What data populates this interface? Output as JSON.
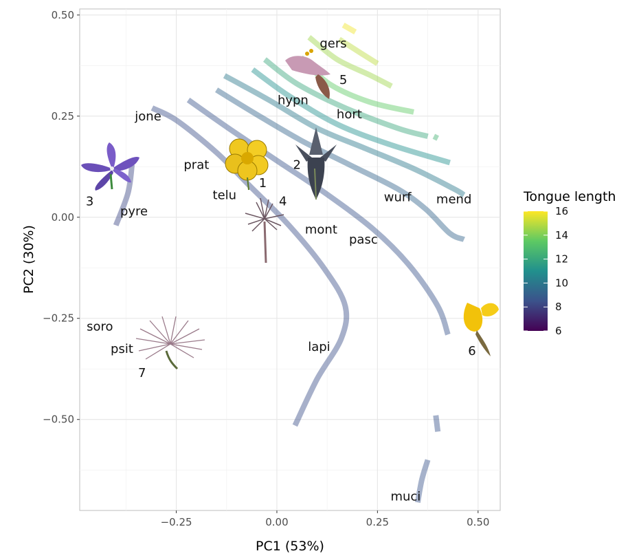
{
  "chart_data": {
    "type": "scatter",
    "xlabel": "PC1 (53%)",
    "ylabel": "PC2 (30%)",
    "xlim": [
      -0.49,
      0.555
    ],
    "ylim": [
      -0.725,
      0.515
    ],
    "x_ticks": [
      -0.25,
      0.0,
      0.25,
      0.5
    ],
    "x_tick_labels": [
      "−0.25",
      "0.00",
      "0.25",
      "0.50"
    ],
    "y_ticks": [
      0.5,
      0.25,
      0.0,
      -0.25,
      -0.5
    ],
    "y_tick_labels": [
      "0.50",
      "0.25",
      "0.00",
      "−0.25",
      "−0.50"
    ],
    "grid": true,
    "legend": {
      "title": "Tongue length",
      "min": 6,
      "max": 16,
      "ticks": [
        16,
        14,
        12,
        10,
        8,
        6
      ],
      "placement": "right",
      "palette": "viridis"
    },
    "contours": [
      {
        "tongue_length": 8.2,
        "points": [
          [
            -0.4,
            -0.02
          ],
          [
            -0.37,
            0.06
          ],
          [
            -0.36,
            0.13
          ]
        ]
      },
      {
        "tongue_length": 8.4,
        "points": [
          [
            -0.31,
            0.27
          ],
          [
            -0.25,
            0.24
          ],
          [
            -0.15,
            0.16
          ],
          [
            -0.07,
            0.08
          ],
          [
            0.03,
            -0.02
          ],
          [
            0.12,
            -0.13
          ],
          [
            0.17,
            -0.22
          ],
          [
            0.16,
            -0.3
          ],
          [
            0.1,
            -0.4
          ],
          [
            0.045,
            -0.515
          ]
        ]
      },
      {
        "tongue_length": 8.6,
        "points": [
          [
            -0.22,
            0.29
          ],
          [
            -0.12,
            0.22
          ],
          [
            0.0,
            0.14
          ],
          [
            0.12,
            0.06
          ],
          [
            0.24,
            -0.03
          ],
          [
            0.33,
            -0.12
          ],
          [
            0.4,
            -0.22
          ],
          [
            0.425,
            -0.29
          ]
        ]
      },
      {
        "tongue_length": 8.6,
        "points": [
          [
            0.395,
            -0.49
          ],
          [
            0.4,
            -0.53
          ]
        ]
      },
      {
        "tongue_length": 8.6,
        "points": [
          [
            0.375,
            -0.6
          ],
          [
            0.36,
            -0.65
          ],
          [
            0.35,
            -0.705
          ]
        ]
      },
      {
        "tongue_length": 9.2,
        "points": [
          [
            -0.15,
            0.315
          ],
          [
            -0.06,
            0.26
          ],
          [
            0.06,
            0.19
          ],
          [
            0.18,
            0.13
          ],
          [
            0.3,
            0.07
          ],
          [
            0.37,
            0.02
          ],
          [
            0.43,
            -0.04
          ],
          [
            0.465,
            -0.055
          ]
        ]
      },
      {
        "tongue_length": 10.0,
        "points": [
          [
            -0.13,
            0.35
          ],
          [
            -0.02,
            0.29
          ],
          [
            0.1,
            0.22
          ],
          [
            0.22,
            0.17
          ],
          [
            0.34,
            0.12
          ],
          [
            0.44,
            0.07
          ],
          [
            0.465,
            0.055
          ]
        ]
      },
      {
        "tongue_length": 11.0,
        "points": [
          [
            -0.06,
            0.365
          ],
          [
            0.03,
            0.3
          ],
          [
            0.15,
            0.23
          ],
          [
            0.28,
            0.18
          ],
          [
            0.43,
            0.135
          ]
        ]
      },
      {
        "tongue_length": 12.0,
        "points": [
          [
            -0.03,
            0.39
          ],
          [
            0.05,
            0.33
          ],
          [
            0.17,
            0.27
          ],
          [
            0.3,
            0.22
          ],
          [
            0.375,
            0.2
          ]
        ]
      },
      {
        "tongue_length": 12.5,
        "points": [
          [
            0.39,
            0.2
          ],
          [
            0.4,
            0.195
          ]
        ]
      },
      {
        "tongue_length": 13.5,
        "points": [
          [
            0.06,
            0.395
          ],
          [
            0.13,
            0.33
          ],
          [
            0.23,
            0.285
          ],
          [
            0.34,
            0.26
          ]
        ]
      },
      {
        "tongue_length": 14.5,
        "points": [
          [
            0.08,
            0.445
          ],
          [
            0.15,
            0.39
          ],
          [
            0.23,
            0.352
          ],
          [
            0.285,
            0.324
          ]
        ]
      },
      {
        "tongue_length": 15.0,
        "points": [
          [
            0.155,
            0.44
          ],
          [
            0.21,
            0.405
          ],
          [
            0.25,
            0.38
          ]
        ]
      },
      {
        "tongue_length": 15.8,
        "points": [
          [
            0.165,
            0.475
          ],
          [
            0.195,
            0.458
          ]
        ]
      }
    ],
    "labels": [
      {
        "text": "gers",
        "x": 0.14,
        "y": 0.43
      },
      {
        "text": "5",
        "x": 0.165,
        "y": 0.34
      },
      {
        "text": "hypn",
        "x": 0.04,
        "y": 0.29
      },
      {
        "text": "hort",
        "x": 0.18,
        "y": 0.255
      },
      {
        "text": "jone",
        "x": -0.32,
        "y": 0.25
      },
      {
        "text": "prat",
        "x": -0.2,
        "y": 0.13
      },
      {
        "text": "2",
        "x": 0.05,
        "y": 0.13
      },
      {
        "text": "1",
        "x": -0.035,
        "y": 0.085
      },
      {
        "text": "telu",
        "x": -0.13,
        "y": 0.055
      },
      {
        "text": "4",
        "x": 0.015,
        "y": 0.04
      },
      {
        "text": "wurf",
        "x": 0.3,
        "y": 0.05
      },
      {
        "text": "mend",
        "x": 0.44,
        "y": 0.045
      },
      {
        "text": "3",
        "x": -0.465,
        "y": 0.04
      },
      {
        "text": "pyre",
        "x": -0.355,
        "y": 0.015
      },
      {
        "text": "mont",
        "x": 0.11,
        "y": -0.03
      },
      {
        "text": "pasc",
        "x": 0.215,
        "y": -0.055
      },
      {
        "text": "soro",
        "x": -0.44,
        "y": -0.27
      },
      {
        "text": "psit",
        "x": -0.385,
        "y": -0.325
      },
      {
        "text": "7",
        "x": -0.335,
        "y": -0.385
      },
      {
        "text": "lapi",
        "x": 0.105,
        "y": -0.32
      },
      {
        "text": "6",
        "x": 0.485,
        "y": -0.33
      },
      {
        "text": "muci",
        "x": 0.32,
        "y": -0.69
      }
    ]
  }
}
